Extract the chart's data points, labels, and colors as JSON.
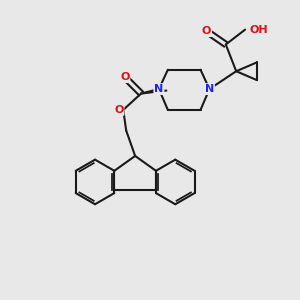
{
  "bg_color": "#e8e8e8",
  "bond_color": "#1a1a1a",
  "bond_width": 1.5,
  "atom_colors": {
    "O": "#dd1111",
    "N": "#2222ee",
    "C": "#1a1a1a",
    "H": "#888888"
  },
  "font_size_atoms": 8,
  "fig_size": [
    3.0,
    3.0
  ],
  "dpi": 100
}
